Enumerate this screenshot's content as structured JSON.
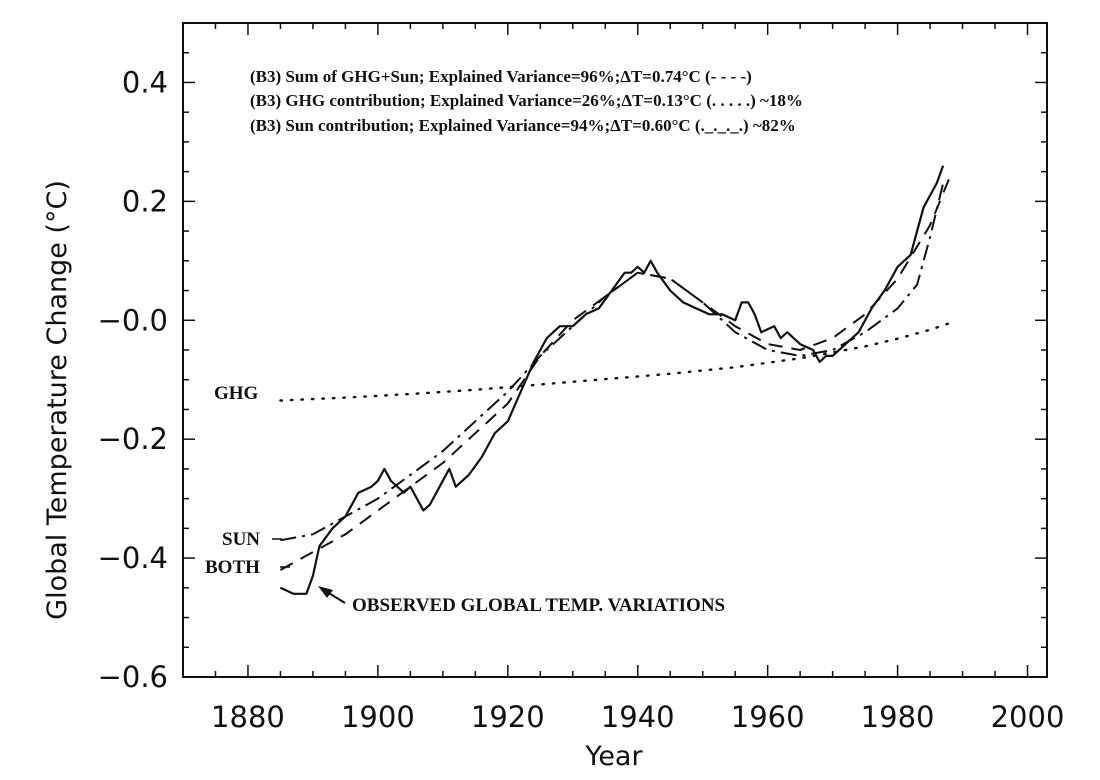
{
  "chart_data": {
    "type": "line",
    "title": "",
    "xlabel": "Year",
    "ylabel": "Global Temperature Change (°C)",
    "xlim": [
      1870,
      2003
    ],
    "ylim": [
      -0.6,
      0.5
    ],
    "x_ticks": [
      1880,
      1900,
      1920,
      1940,
      1960,
      1980,
      2000
    ],
    "x_tick_labels": [
      "1880",
      "1900",
      "1920",
      "1940",
      "1960",
      "1980",
      "2000"
    ],
    "y_ticks": [
      -0.6,
      -0.4,
      -0.2,
      0.0,
      0.2,
      0.4
    ],
    "y_tick_labels": [
      "−0.6",
      "−0.4",
      "−0.2",
      "−0.0",
      "0.2",
      "0.4"
    ],
    "grid": false,
    "legend_position": "top",
    "legend": [
      "(B3) Sum of GHG+Sun; Explained Variance=96%;ΔT=0.74°C (- - - -)",
      "(B3) GHG contribution; Explained Variance=26%;ΔT=0.13°C (. . . . .)  ~18%",
      "(B3) Sun contribution; Explained Variance=94%;ΔT=0.60°C (._._._.)  ~82%"
    ],
    "series_labels": {
      "ghg": "GHG",
      "sun": "SUN",
      "both": "BOTH"
    },
    "annotation": "OBSERVED GLOBAL TEMP. VARIATIONS",
    "series": [
      {
        "key": "observed",
        "style": "solid",
        "x": [
          1885,
          1887,
          1889,
          1890,
          1891,
          1893,
          1895,
          1897,
          1899,
          1900,
          1901,
          1902,
          1904,
          1905,
          1907,
          1908,
          1910,
          1911,
          1912,
          1914,
          1916,
          1918,
          1920,
          1922,
          1924,
          1926,
          1928,
          1930,
          1932,
          1934,
          1936,
          1938,
          1939,
          1940,
          1941,
          1942,
          1943,
          1945,
          1947,
          1949,
          1951,
          1953,
          1955,
          1956,
          1957,
          1958,
          1959,
          1961,
          1962,
          1963,
          1965,
          1967,
          1968,
          1969,
          1970,
          1972,
          1974,
          1976,
          1978,
          1980,
          1982,
          1983,
          1984,
          1986,
          1987
        ],
        "y": [
          -0.45,
          -0.46,
          -0.46,
          -0.43,
          -0.38,
          -0.35,
          -0.33,
          -0.29,
          -0.28,
          -0.27,
          -0.25,
          -0.27,
          -0.29,
          -0.28,
          -0.32,
          -0.31,
          -0.27,
          -0.25,
          -0.28,
          -0.26,
          -0.23,
          -0.19,
          -0.17,
          -0.12,
          -0.07,
          -0.03,
          -0.01,
          -0.01,
          0.01,
          0.02,
          0.05,
          0.08,
          0.08,
          0.09,
          0.08,
          0.1,
          0.08,
          0.05,
          0.03,
          0.02,
          0.01,
          0.01,
          0.0,
          0.03,
          0.03,
          0.01,
          -0.02,
          -0.01,
          -0.03,
          -0.02,
          -0.04,
          -0.05,
          -0.07,
          -0.06,
          -0.06,
          -0.04,
          -0.02,
          0.02,
          0.05,
          0.09,
          0.11,
          0.15,
          0.19,
          0.23,
          0.26
        ]
      },
      {
        "key": "both",
        "style": "dashed",
        "x": [
          1885,
          1890,
          1895,
          1900,
          1905,
          1910,
          1915,
          1920,
          1925,
          1930,
          1935,
          1940,
          1945,
          1950,
          1955,
          1960,
          1965,
          1970,
          1975,
          1980,
          1985,
          1988
        ],
        "y": [
          -0.42,
          -0.39,
          -0.36,
          -0.32,
          -0.28,
          -0.24,
          -0.19,
          -0.14,
          -0.06,
          0.0,
          0.04,
          0.08,
          0.07,
          0.03,
          -0.01,
          -0.04,
          -0.05,
          -0.03,
          0.01,
          0.07,
          0.16,
          0.24
        ]
      },
      {
        "key": "sun",
        "style": "dash-dot",
        "x": [
          1885,
          1890,
          1895,
          1900,
          1905,
          1910,
          1915,
          1920,
          1925,
          1930,
          1935,
          1940,
          1945,
          1950,
          1955,
          1960,
          1965,
          1970,
          1975,
          1980,
          1983,
          1985,
          1987
        ],
        "y": [
          -0.37,
          -0.36,
          -0.33,
          -0.3,
          -0.26,
          -0.22,
          -0.17,
          -0.12,
          -0.06,
          -0.01,
          0.04,
          0.08,
          0.07,
          0.03,
          -0.02,
          -0.05,
          -0.06,
          -0.05,
          -0.02,
          0.02,
          0.06,
          0.14,
          0.23
        ]
      },
      {
        "key": "ghg",
        "style": "dotted",
        "x": [
          1885,
          1895,
          1905,
          1915,
          1925,
          1935,
          1945,
          1955,
          1965,
          1975,
          1980,
          1985,
          1988
        ],
        "y": [
          -0.135,
          -0.13,
          -0.124,
          -0.117,
          -0.108,
          -0.099,
          -0.09,
          -0.079,
          -0.064,
          -0.044,
          -0.031,
          -0.016,
          -0.005
        ]
      }
    ]
  }
}
